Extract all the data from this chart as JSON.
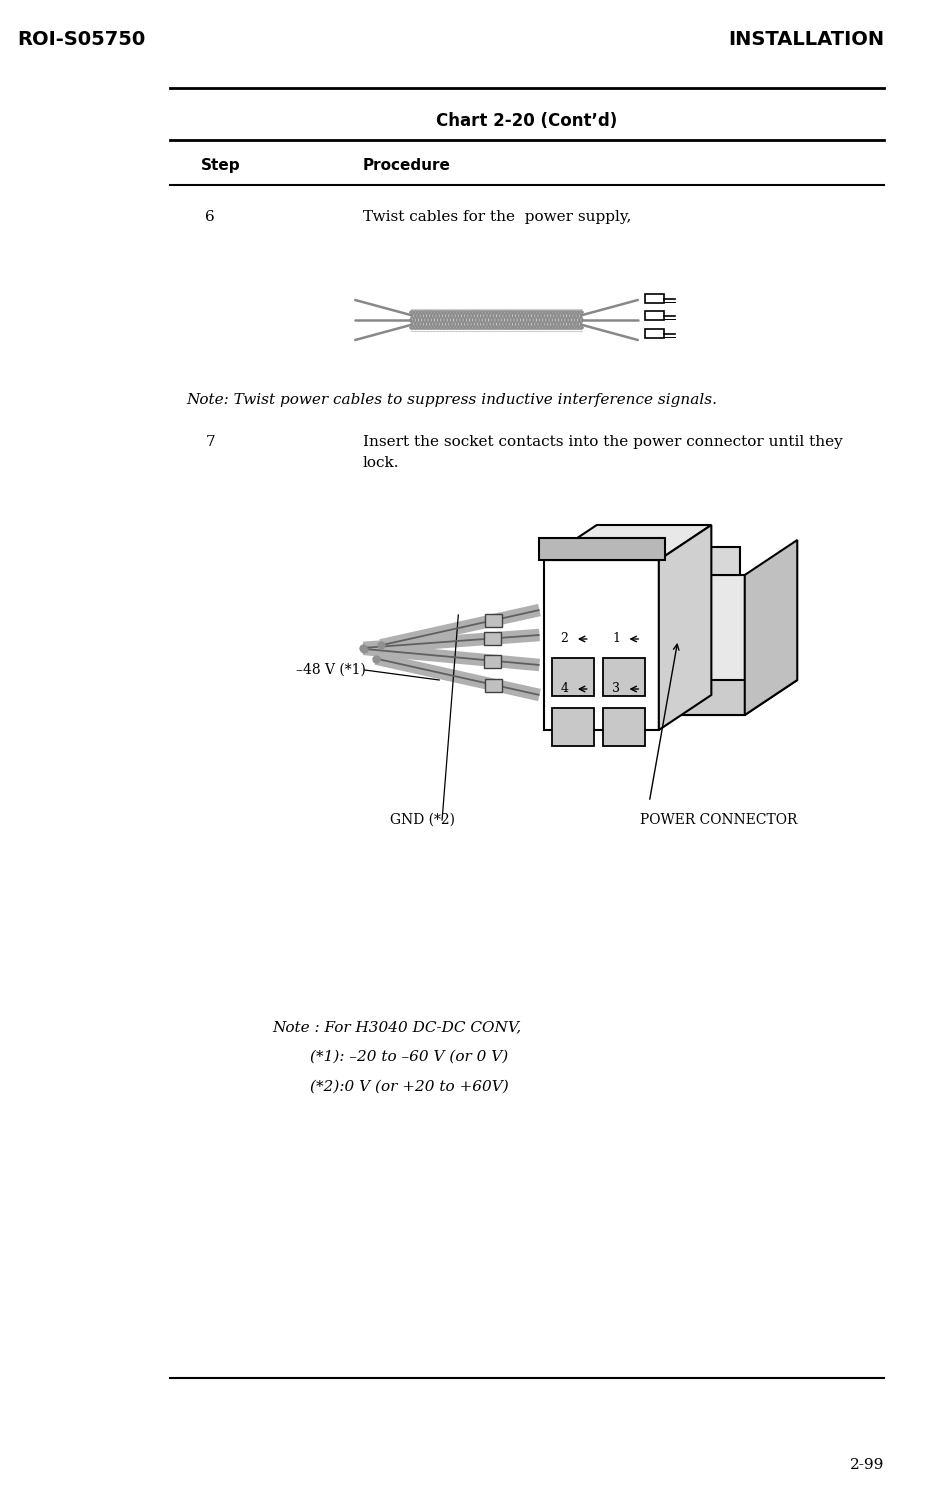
{
  "bg_color": "#ffffff",
  "header_left": "ROI-S05750",
  "header_right": "INSTALLATION",
  "footer_right": "2-99",
  "chart_title": "Chart 2-20 (Cont’d)",
  "col_step": "Step",
  "col_procedure": "Procedure",
  "step6_num": "6",
  "step6_text": "Twist cables for the  power supply,",
  "note1_text": "Note: Twist power cables to suppress inductive interference signals.",
  "step7_num": "7",
  "step7_text": "Insert the socket contacts into the power connector until they\nlock.",
  "label_48v": "–48 V (*1)",
  "label_gnd": "GND (*2)",
  "label_connector": "POWER CONNECTOR",
  "note2_line1": "Note : For H3040 DC-DC CONV,",
  "note2_line2": "(*1): –20 to –60 V (or 0 V)",
  "note2_line3": "(*2):0 V (or +20 to +60V)",
  "text_color": "#000000",
  "line_color": "#000000",
  "diagram_color": "#888888",
  "connector_color": "#000000"
}
